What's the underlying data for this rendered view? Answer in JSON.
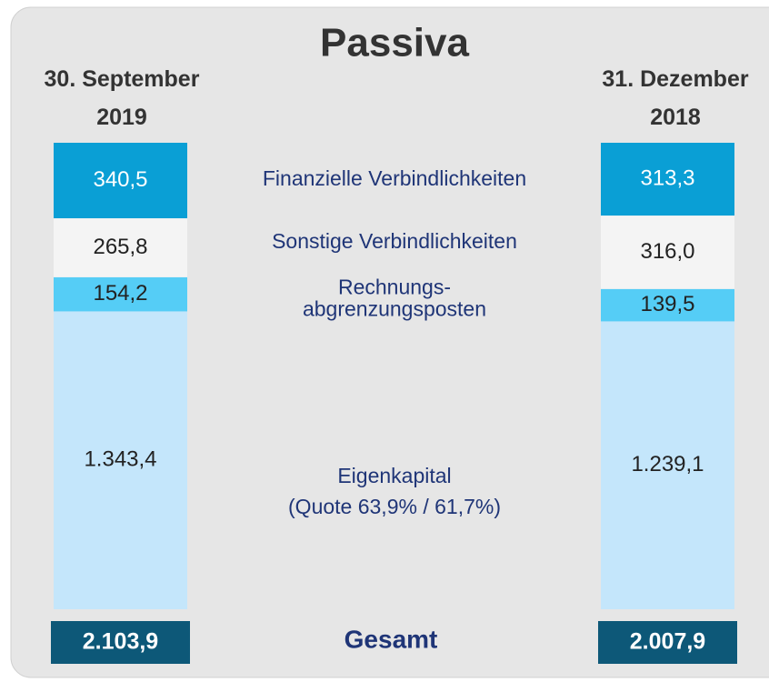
{
  "chart_data": {
    "type": "bar",
    "stacked": true,
    "title": "Passiva",
    "categories": [
      "30. September\n2019",
      "31. Dezember\n2018"
    ],
    "series": [
      {
        "name": "Finanzielle Verbindlichkeiten",
        "color": "#0a9fd5",
        "label_color": "#ffffff",
        "values": [
          340.5,
          313.3
        ],
        "value_labels": [
          "340,5",
          "313,3"
        ]
      },
      {
        "name": "Sonstige Verbindlichkeiten",
        "color": "#f4f4f4",
        "label_color": "#222222",
        "values": [
          265.8,
          316.0
        ],
        "value_labels": [
          "265,8",
          "316,0"
        ]
      },
      {
        "name": "Rechnungs-\nabgrenzungsposten",
        "color": "#55cdf6",
        "label_color": "#222222",
        "values": [
          154.2,
          139.5
        ],
        "value_labels": [
          "154,2",
          "139,5"
        ]
      },
      {
        "name": "Eigenkapital",
        "color": "#c4e6fb",
        "label_color": "#222222",
        "values": [
          1343.4,
          1239.1
        ],
        "value_labels": [
          "1.343,4",
          "1.239,1"
        ]
      }
    ],
    "annotation": "(Quote 63,9% / 61,7%)",
    "totals": {
      "name": "Gesamt",
      "color": "#0d5878",
      "values": [
        2103.9,
        2007.9
      ],
      "value_labels": [
        "2.103,9",
        "2.007,9"
      ]
    }
  }
}
